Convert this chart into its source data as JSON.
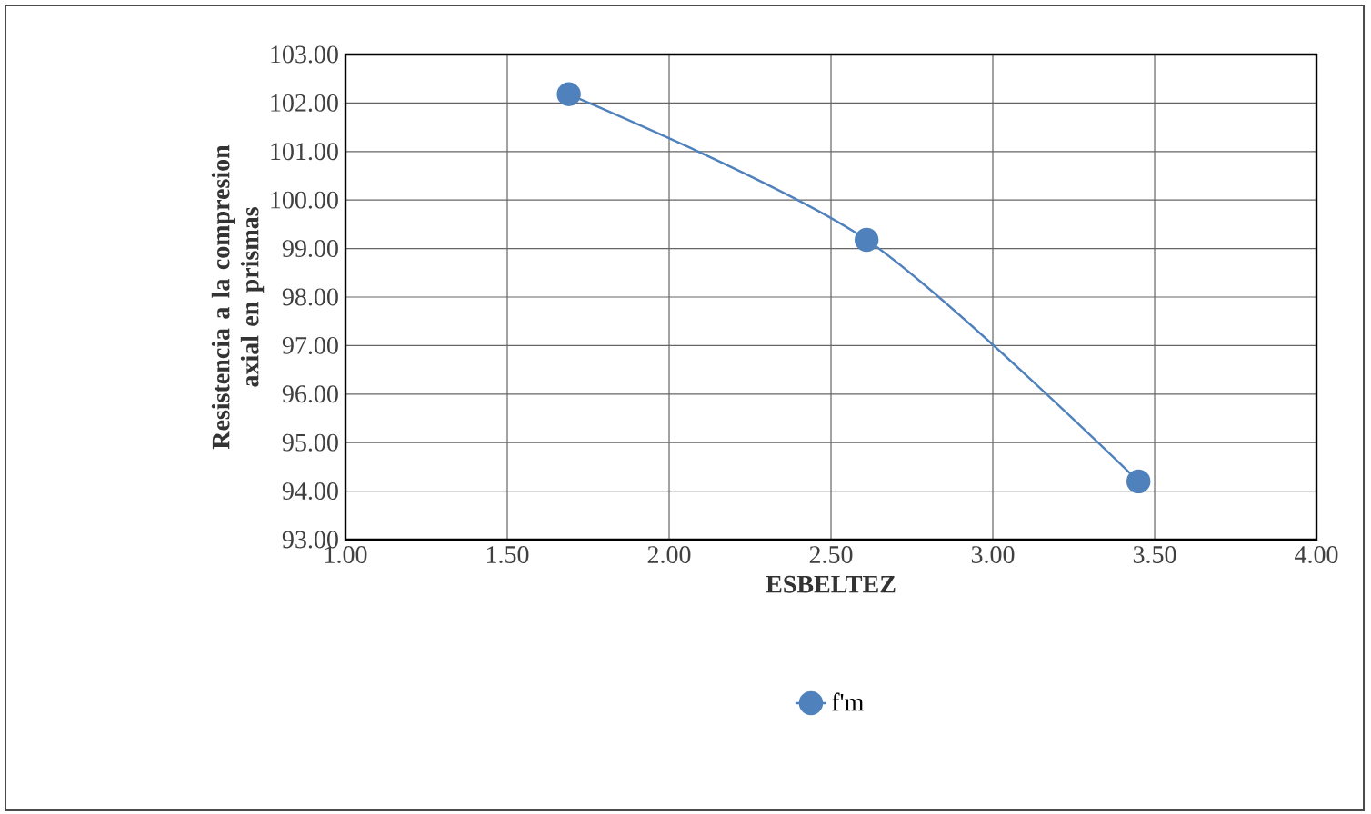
{
  "chart_data": {
    "type": "line",
    "xlabel": "ESBELTEZ",
    "ylabel": "Resistencia a la compresion axial en prismas",
    "x": [
      1.69,
      2.61,
      3.45
    ],
    "series": [
      {
        "name": "f'm",
        "color": "#4f81bd",
        "values": [
          102.18,
          99.18,
          94.2
        ]
      }
    ],
    "xlim": [
      1.0,
      4.0
    ],
    "xticks": [
      {
        "value": 1.0,
        "label": "1.00"
      },
      {
        "value": 1.5,
        "label": "1.50"
      },
      {
        "value": 2.0,
        "label": "2.00"
      },
      {
        "value": 2.5,
        "label": "2.50"
      },
      {
        "value": 3.0,
        "label": "3.00"
      },
      {
        "value": 3.5,
        "label": "3.50"
      },
      {
        "value": 4.0,
        "label": "4.00"
      }
    ],
    "ylim": [
      93.0,
      103.0
    ],
    "yticks": [
      {
        "value": 93,
        "label": "93.00"
      },
      {
        "value": 94,
        "label": "94.00"
      },
      {
        "value": 95,
        "label": "95.00"
      },
      {
        "value": 96,
        "label": "96.00"
      },
      {
        "value": 97,
        "label": "97.00"
      },
      {
        "value": 98,
        "label": "98.00"
      },
      {
        "value": 99,
        "label": "99.00"
      },
      {
        "value": 100,
        "label": "100.00"
      },
      {
        "value": 101,
        "label": "101.00"
      },
      {
        "value": 102,
        "label": "102.00"
      },
      {
        "value": 103,
        "label": "103.00"
      }
    ],
    "grid": true,
    "legend": "bottom",
    "marker": "circle",
    "line_style": "solid"
  }
}
